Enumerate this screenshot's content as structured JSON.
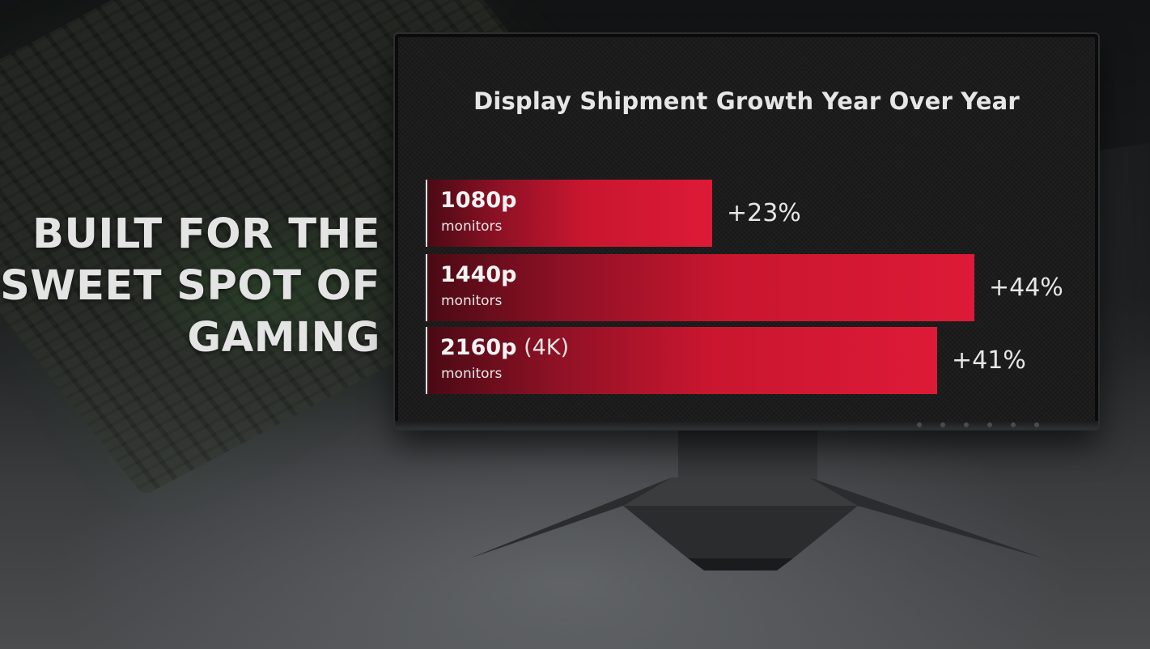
{
  "headline": {
    "line1": "BUILT FOR THE",
    "line2": "SWEET SPOT OF",
    "line3": "GAMING"
  },
  "chart_data": {
    "type": "bar",
    "orientation": "horizontal",
    "title": "Display Shipment Growth Year Over Year",
    "categories": [
      "1080p monitors",
      "1440p monitors",
      "2160p (4K) monitors"
    ],
    "values": [
      23,
      44,
      41
    ],
    "unit": "%",
    "bars": [
      {
        "label": "1080p",
        "qualifier": "",
        "sublabel": "monitors",
        "value": 23,
        "display": "+23%"
      },
      {
        "label": "1440p",
        "qualifier": "",
        "sublabel": "monitors",
        "value": 44,
        "display": "+44%"
      },
      {
        "label": "2160p",
        "qualifier": "(4K)",
        "sublabel": "monitors",
        "value": 41,
        "display": "+41%"
      }
    ],
    "xlim": [
      0,
      48
    ],
    "grid": false,
    "bar_color": "#dd1a37"
  }
}
